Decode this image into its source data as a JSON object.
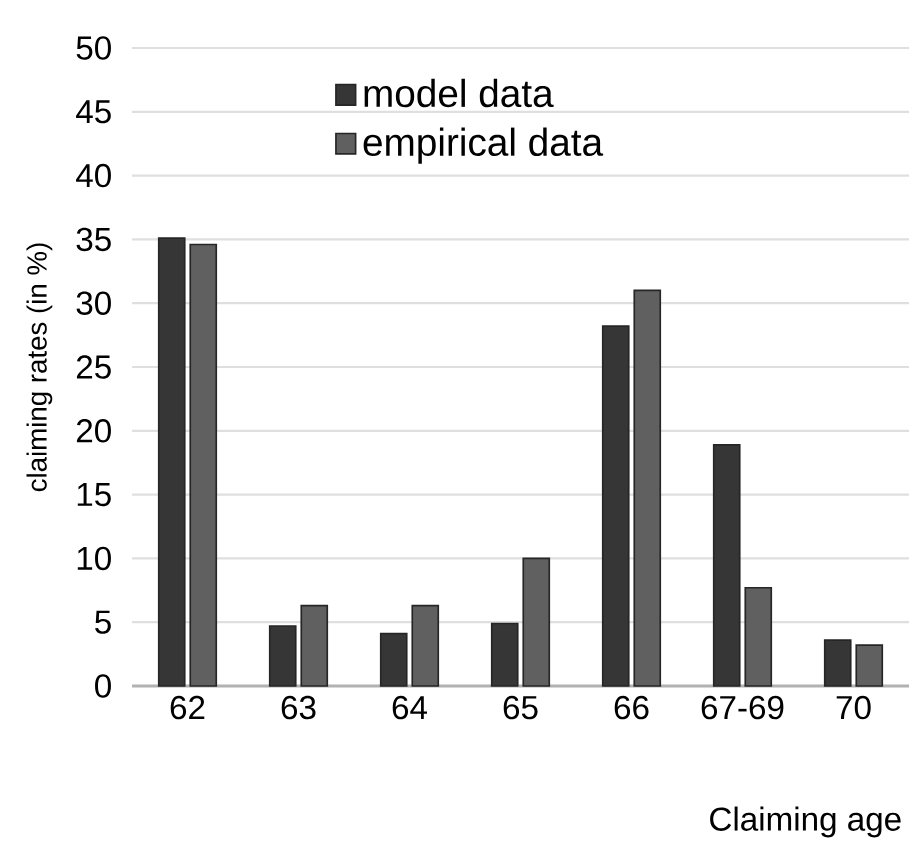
{
  "chart_data": {
    "type": "bar",
    "xlabel": "Claiming age",
    "ylabel": "claiming rates (in %)",
    "categories": [
      "62",
      "63",
      "64",
      "65",
      "66",
      "67-69",
      "70"
    ],
    "series": [
      {
        "name": "model data",
        "color": "#363636",
        "values": [
          35.1,
          4.7,
          4.1,
          4.9,
          28.2,
          18.9,
          3.6
        ]
      },
      {
        "name": "empirical data",
        "color": "#606060",
        "values": [
          34.6,
          6.3,
          6.3,
          10.0,
          31.0,
          7.7,
          3.2
        ]
      }
    ],
    "ylim": [
      0,
      50
    ],
    "yticks": [
      0,
      5,
      10,
      15,
      20,
      25,
      30,
      35,
      40,
      45,
      50
    ],
    "grid": "y",
    "legend": "top"
  }
}
